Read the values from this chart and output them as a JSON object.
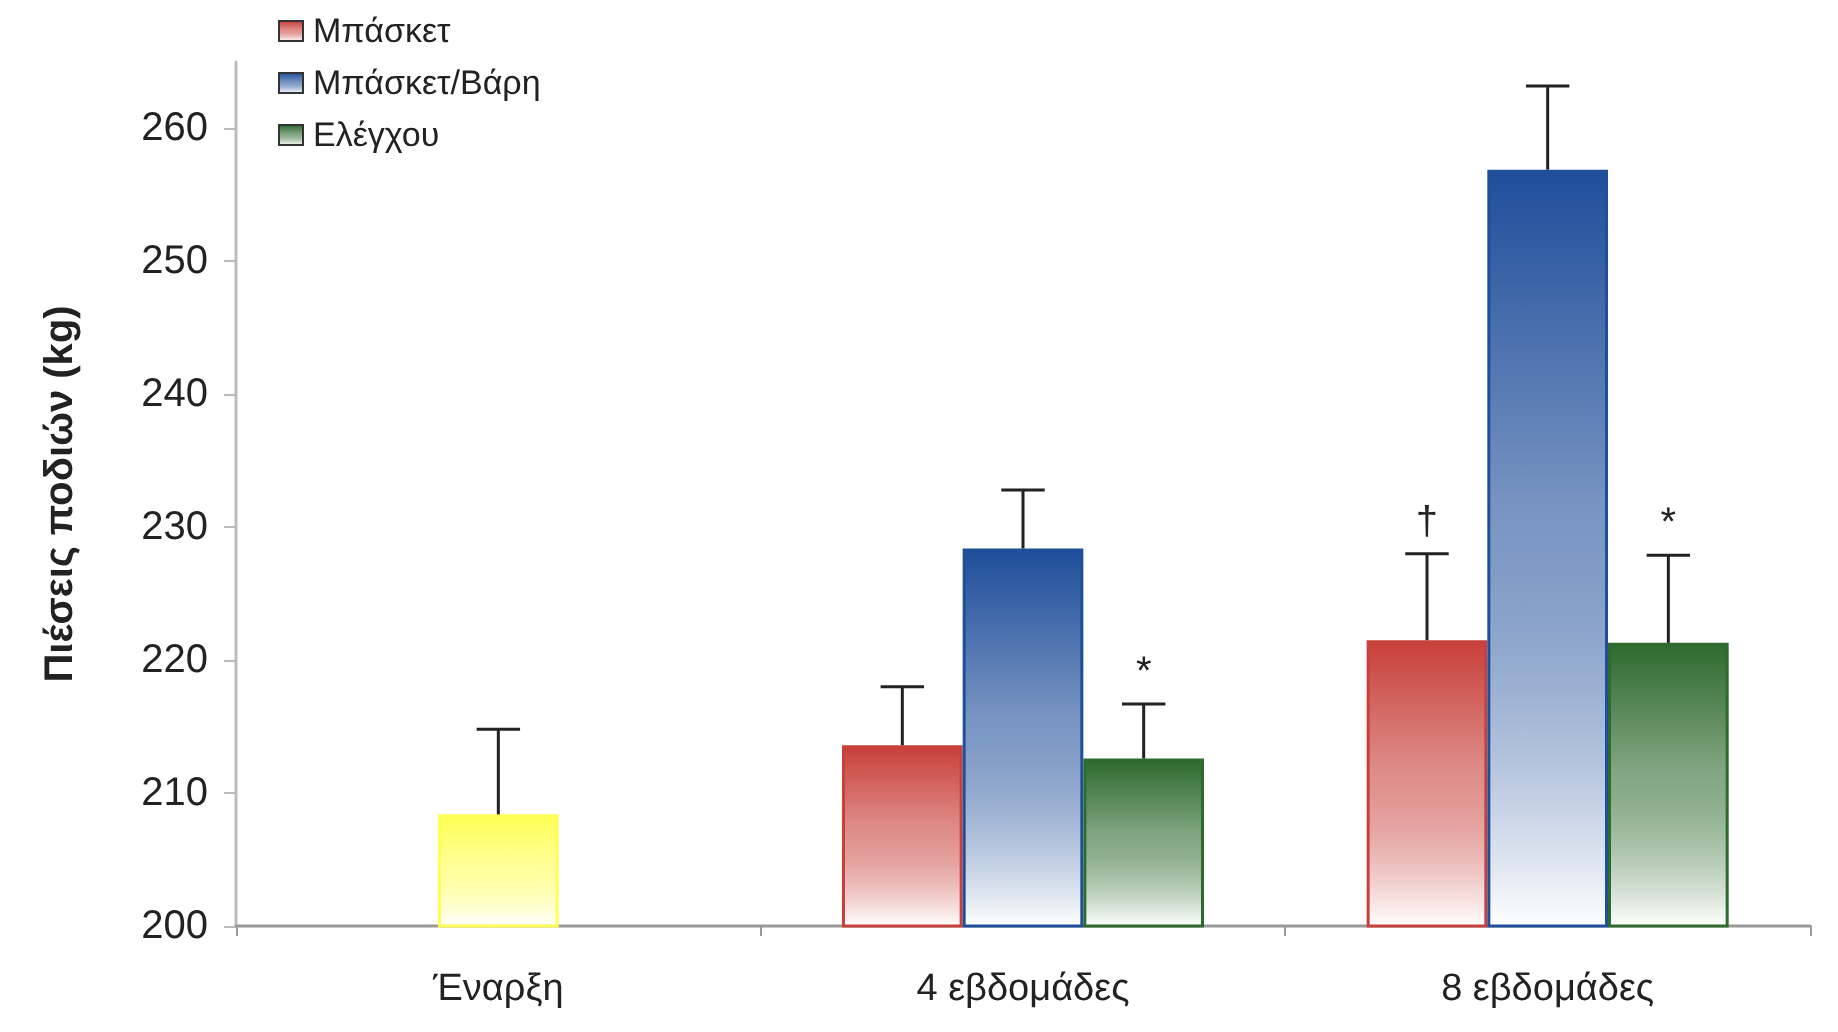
{
  "chart_data": {
    "type": "bar",
    "ylabel": "Πιέσεις ποδιών (kg)",
    "categories": [
      "Έναρξη",
      "4 εβδομάδες",
      "8 εβδομάδες"
    ],
    "series": [
      {
        "color": "#ffff55",
        "values": [
          208.4,
          null,
          null
        ],
        "errors": [
          [
            208.4,
            214.8
          ],
          null,
          null
        ]
      },
      {
        "name": "Μπάσκετ",
        "color": "#c8403a",
        "values": [
          null,
          213.6,
          221.5
        ],
        "errors": [
          null,
          [
            213.6,
            218.0
          ],
          [
            221.5,
            228.0
          ]
        ],
        "value_labels": [
          null,
          null,
          "†"
        ]
      },
      {
        "name": "Μπάσκετ/Βάρη",
        "color": "#1f4e9a",
        "values": [
          null,
          228.4,
          256.9
        ],
        "errors": [
          null,
          [
            228.4,
            232.8
          ],
          [
            256.9,
            263.2
          ]
        ]
      },
      {
        "name": "Ελέγχου",
        "color": "#2e6a2e",
        "values": [
          null,
          212.6,
          221.3
        ],
        "errors": [
          null,
          [
            212.6,
            216.7
          ],
          [
            221.3,
            227.9
          ]
        ],
        "value_labels": [
          null,
          "*",
          "*"
        ]
      }
    ],
    "ylim": [
      200,
      265
    ],
    "yticks": [
      200,
      210,
      220,
      230,
      240,
      250,
      260
    ],
    "grid": false,
    "legend": "top left"
  }
}
